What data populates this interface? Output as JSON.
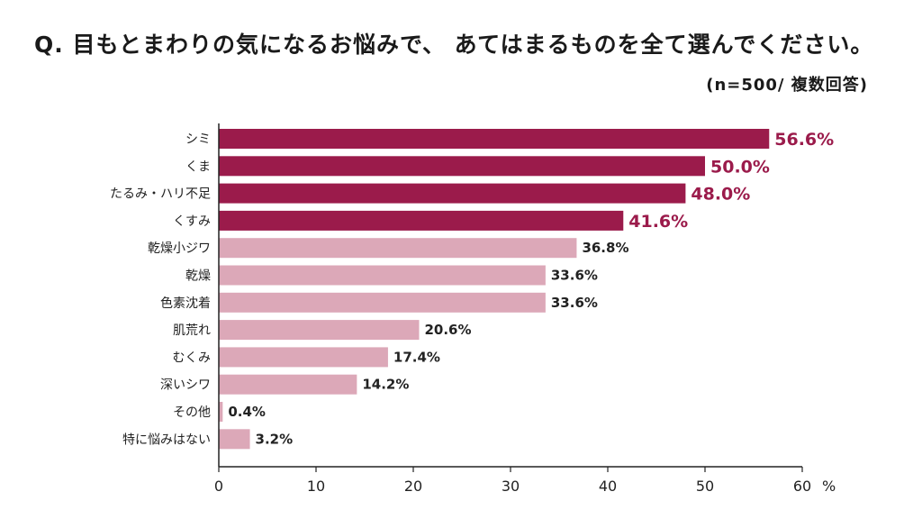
{
  "title": "Q. 目もとまわりの気になるお悩みで、 あてはまるものを全て選んでください。",
  "subtitle": "(n=500/ 複数回答)",
  "colors": {
    "highlight": "#9b1b4b",
    "normal": "#dca8b8",
    "axis": "#222222",
    "text": "#222222"
  },
  "chart_data": {
    "type": "bar",
    "orientation": "horizontal",
    "categories": [
      "シミ",
      "くま",
      "たるみ・ハリ不足",
      "くすみ",
      "乾燥小ジワ",
      "乾燥",
      "色素沈着",
      "肌荒れ",
      "むくみ",
      "深いシワ",
      "その他",
      "特に悩みはない"
    ],
    "values": [
      56.6,
      50.0,
      48.0,
      41.6,
      36.8,
      33.6,
      33.6,
      20.6,
      17.4,
      14.2,
      0.4,
      3.2
    ],
    "value_labels": [
      "56.6%",
      "50.0%",
      "48.0%",
      "41.6%",
      "36.8%",
      "33.6%",
      "33.6%",
      "20.6%",
      "17.4%",
      "14.2%",
      "0.4%",
      "3.2%"
    ],
    "highlight_top": 4,
    "xlim": [
      0,
      60
    ],
    "xticks": [
      0,
      10,
      20,
      30,
      40,
      50,
      60
    ],
    "xunit": "%",
    "grid": false
  }
}
